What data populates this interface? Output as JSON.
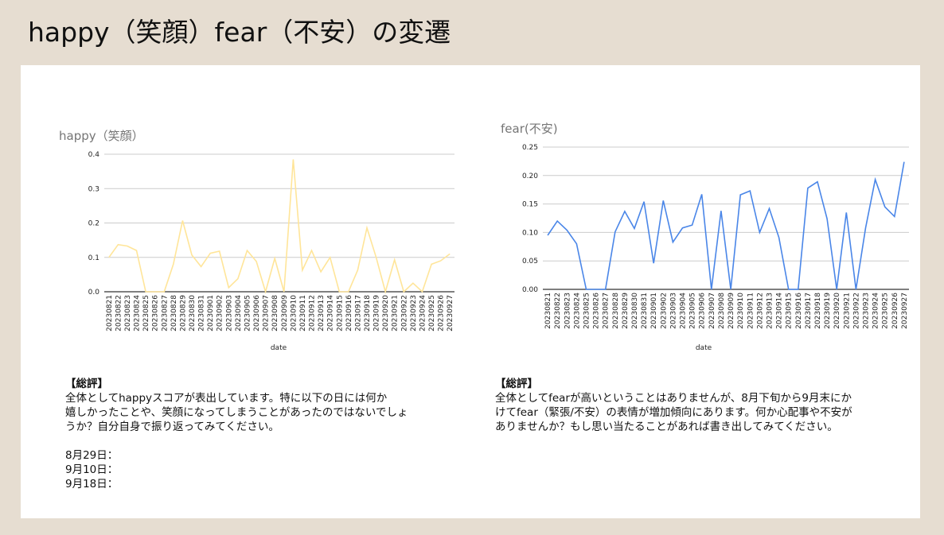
{
  "page": {
    "title": "happy（笑顔）fear（不安）の変遷"
  },
  "chart_data": [
    {
      "type": "line",
      "title": "happy（笑顔）",
      "xlabel": "date",
      "ylabel": "",
      "color": "#ffe599",
      "ylim": [
        0,
        0.4
      ],
      "yticks": [
        "0.0",
        "0.1",
        "0.2",
        "0.3",
        "0.4"
      ],
      "ytick_values": [
        0,
        0.1,
        0.2,
        0.3,
        0.4
      ],
      "grid": true,
      "categories": [
        "20230821",
        "20230822",
        "20230823",
        "20230824",
        "20230825",
        "20230826",
        "20230827",
        "20230828",
        "20230829",
        "20230830",
        "20230831",
        "20230901",
        "20230902",
        "20230903",
        "20230904",
        "20230905",
        "20230906",
        "20230907",
        "20230908",
        "20230909",
        "20230910",
        "20230911",
        "20230912",
        "20230913",
        "20230914",
        "20230915",
        "20230916",
        "20230917",
        "20230918",
        "20230919",
        "20230920",
        "20230921",
        "20230922",
        "20230923",
        "20230924",
        "20230925",
        "20230926",
        "20230927"
      ],
      "values": [
        0.1,
        0.137,
        0.133,
        0.12,
        0,
        0,
        0,
        0.08,
        0.207,
        0.107,
        0.073,
        0.112,
        0.118,
        0.012,
        0.038,
        0.12,
        0.088,
        0,
        0.097,
        0,
        0.385,
        0.063,
        0.12,
        0.058,
        0.1,
        0,
        0,
        0.063,
        0.186,
        0.1,
        0,
        0.093,
        0,
        0.025,
        0,
        0.08,
        0.09,
        0.11
      ]
    },
    {
      "type": "line",
      "title": "fear(不安)",
      "xlabel": "date",
      "ylabel": "",
      "color": "#4a86e8",
      "ylim": [
        0,
        0.25
      ],
      "yticks": [
        "0.00",
        "0.05",
        "0.10",
        "0.15",
        "0.20",
        "0.25"
      ],
      "ytick_values": [
        0,
        0.05,
        0.1,
        0.15,
        0.2,
        0.25
      ],
      "grid": true,
      "categories": [
        "20230821",
        "20230822",
        "20230823",
        "20230824",
        "20230825",
        "20230826",
        "20230827",
        "20230828",
        "20230829",
        "20230830",
        "20230831",
        "20230901",
        "20230902",
        "20230903",
        "20230904",
        "20230905",
        "20230906",
        "20230907",
        "20230908",
        "20230909",
        "20230910",
        "20230911",
        "20230912",
        "20230913",
        "20230914",
        "20230915",
        "20230916",
        "20230917",
        "20230918",
        "20230919",
        "20230920",
        "20230921",
        "20230922",
        "20230923",
        "20230924",
        "20230925",
        "20230926",
        "20230927"
      ],
      "values": [
        0.095,
        0.12,
        0.104,
        0.08,
        0,
        0,
        0,
        0.101,
        0.137,
        0.107,
        0.154,
        0.046,
        0.156,
        0.083,
        0.108,
        0.113,
        0.167,
        0,
        0.138,
        0,
        0.166,
        0.173,
        0.1,
        0.142,
        0.091,
        0,
        0,
        0.178,
        0.189,
        0.124,
        0,
        0.135,
        0,
        0.108,
        0.193,
        0.145,
        0.128,
        0.224
      ]
    }
  ],
  "comments": {
    "happy": {
      "head": "【総評】",
      "body": "全体としてhappyスコアが表出しています。特に以下の日には何か\n嬉しかったことや、笑顔になってしまうことがあったのではないでしょ\nうか？自分自身で振り返ってみてください。",
      "dates": [
        "8月29日：",
        "9月10日：",
        "9月18日："
      ]
    },
    "fear": {
      "head": "【総評】",
      "body": "全体としてfearが高いということはありませんが、8月下旬から9月末にか\nけてfear（緊張/不安）の表情が増加傾向にあります。何か心配事や不安が\nありませんか？もし思い当たることがあれば書き出してみてください。"
    }
  }
}
